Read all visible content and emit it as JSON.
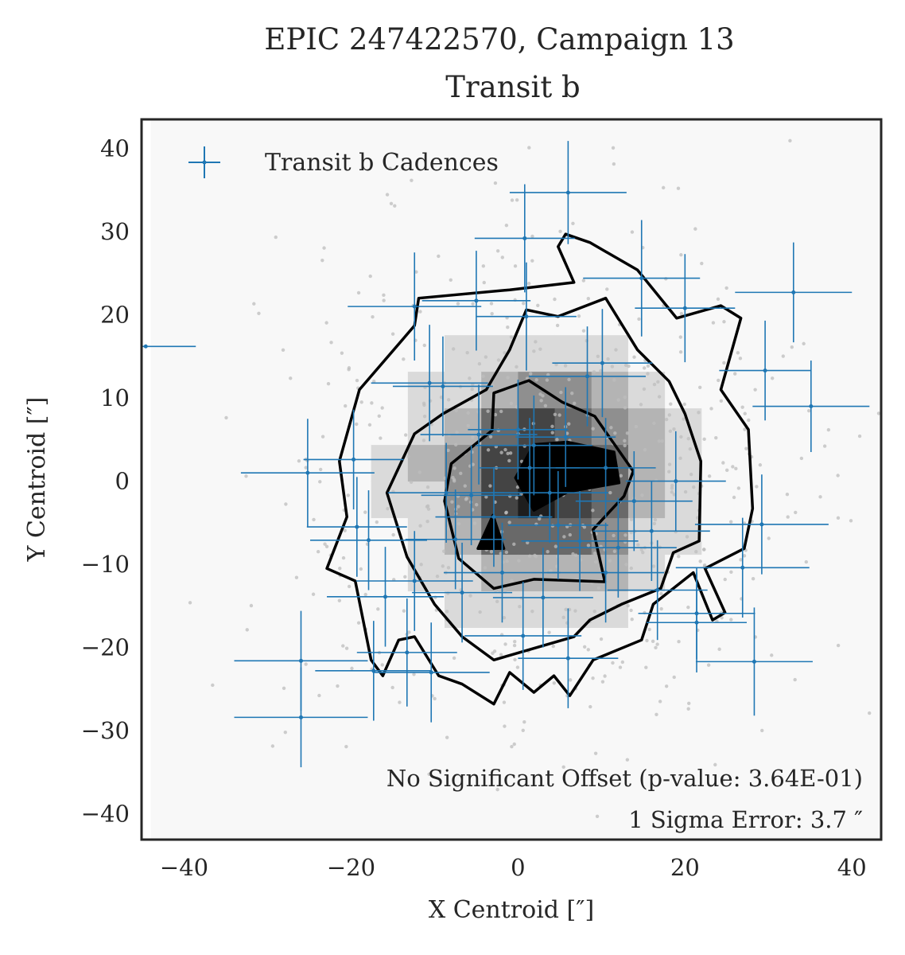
{
  "chart_data": {
    "type": "scatter",
    "title": [
      "EPIC 247422570, Campaign 13",
      "Transit b"
    ],
    "xlabel": "X Centroid [″]",
    "ylabel": "Y Centroid [″]",
    "xlim": [
      -45.1,
      43.5
    ],
    "ylim": [
      -43.1,
      43.5
    ],
    "xticks": [
      -40,
      -20,
      0,
      20,
      40
    ],
    "yticks": [
      -40,
      -30,
      -20,
      -10,
      0,
      10,
      20,
      30,
      40
    ],
    "xtick_labels": [
      "−40",
      "−20",
      "0",
      "20",
      "40"
    ],
    "ytick_labels": [
      "−40",
      "−30",
      "−20",
      "−10",
      "0",
      "10",
      "20",
      "30",
      "40"
    ],
    "grid": false,
    "legend": {
      "placement": "top-left",
      "entries": [
        "Transit b Cadences"
      ]
    },
    "colors": {
      "cadences": "#1f77b4",
      "contour": "#000000",
      "background_points": "#bdbdbd"
    },
    "annotations": [
      "No Significant Offset (p-value: 3.64E-01)",
      "1 Sigma Error: 3.7 ″"
    ],
    "series": [
      {
        "name": "Transit b Cadences",
        "points_x_y_xerr_yerr": [
          [
            6.0,
            34.7,
            7,
            6.2
          ],
          [
            0.8,
            29.2,
            6,
            6.5
          ],
          [
            -5.0,
            21.7,
            6.5,
            6
          ],
          [
            -12.4,
            21.0,
            8,
            6.5
          ],
          [
            1.0,
            19.8,
            6,
            6.5
          ],
          [
            14.8,
            24.4,
            7,
            7
          ],
          [
            20.0,
            20.8,
            6,
            6.5
          ],
          [
            33.0,
            22.7,
            7,
            6
          ],
          [
            29.6,
            13.3,
            5.5,
            6
          ],
          [
            35.1,
            9.0,
            7,
            5.5
          ],
          [
            -25.2,
            1.0,
            8,
            6.5
          ],
          [
            -19.7,
            2.6,
            6,
            6
          ],
          [
            -10.6,
            11.8,
            7,
            7
          ],
          [
            -9.0,
            11.4,
            6,
            6
          ],
          [
            8.3,
            12.6,
            7,
            6
          ],
          [
            10.1,
            14.2,
            6,
            6.5
          ],
          [
            5.7,
            5.3,
            6,
            6
          ],
          [
            18.9,
            0.0,
            6,
            6
          ],
          [
            29.2,
            -5.2,
            8,
            6
          ],
          [
            26.9,
            -10.4,
            8,
            6
          ],
          [
            21.4,
            -15.9,
            7,
            5.5
          ],
          [
            21.4,
            -17.0,
            6,
            6
          ],
          [
            28.3,
            -21.7,
            7,
            6.5
          ],
          [
            -26.0,
            -21.6,
            8,
            6
          ],
          [
            -26.0,
            -28.4,
            8,
            6
          ],
          [
            -17.3,
            -22.8,
            7,
            6
          ],
          [
            -13.3,
            -20.6,
            6,
            6.5
          ],
          [
            -10.4,
            -23.0,
            7,
            6
          ],
          [
            -15.9,
            -13.9,
            7,
            6
          ],
          [
            -17.9,
            -7.1,
            7,
            6
          ],
          [
            -19.3,
            -5.5,
            6,
            6
          ],
          [
            -6.7,
            -13.4,
            6,
            6
          ],
          [
            -1.9,
            -11.0,
            7,
            6
          ],
          [
            6.0,
            -21.3,
            6,
            6
          ],
          [
            0.6,
            -18.6,
            7,
            6.5
          ],
          [
            7.4,
            -7.2,
            7,
            6
          ],
          [
            16.0,
            -6.0,
            7,
            6
          ],
          [
            13.9,
            -2.4,
            7,
            6
          ],
          [
            10.5,
            1.6,
            6,
            6
          ],
          [
            1.9,
            4.3,
            7,
            6
          ],
          [
            -2.9,
            -4.3,
            7,
            6
          ],
          [
            -5.6,
            -1.7,
            6,
            6
          ],
          [
            -8.6,
            -1.4,
            7,
            6
          ],
          [
            0.0,
            6.2,
            6,
            6
          ],
          [
            3.8,
            -1.4,
            7,
            6
          ],
          [
            4.8,
            -5.3,
            6,
            6.5
          ],
          [
            10.5,
            -11.0,
            7,
            6
          ],
          [
            16.7,
            -13.1,
            6,
            6
          ],
          [
            -12.4,
            -12.0,
            7,
            6
          ],
          [
            -44.6,
            16.2,
            6,
            0
          ],
          [
            -4.7,
            5.6,
            7,
            6
          ],
          [
            1.4,
            1.6,
            6,
            6
          ],
          [
            12.0,
            -8.0,
            7,
            6
          ],
          [
            -7.5,
            -7.0,
            6,
            6
          ],
          [
            3.0,
            -14.0,
            6,
            6
          ]
        ]
      }
    ],
    "contours": [
      {
        "level": "outer",
        "path_xy": [
          [
            5.7,
            29.7
          ],
          [
            8.6,
            28.7
          ],
          [
            14.3,
            25.4
          ],
          [
            19.0,
            19.6
          ],
          [
            24.3,
            21.1
          ],
          [
            26.7,
            19.6
          ],
          [
            24.3,
            11.0
          ],
          [
            27.6,
            6.2
          ],
          [
            28.1,
            -3.3
          ],
          [
            27.1,
            -8.1
          ],
          [
            22.4,
            -10.5
          ],
          [
            24.8,
            -15.8
          ],
          [
            23.3,
            -16.7
          ],
          [
            21.0,
            -11.0
          ],
          [
            16.2,
            -14.8
          ],
          [
            14.8,
            -19.1
          ],
          [
            9.0,
            -21.5
          ],
          [
            6.2,
            -25.8
          ],
          [
            4.3,
            -23.4
          ],
          [
            1.9,
            -25.4
          ],
          [
            -1.0,
            -23.0
          ],
          [
            -2.9,
            -26.8
          ],
          [
            -6.7,
            -24.4
          ],
          [
            -9.5,
            -23.4
          ],
          [
            -12.4,
            -18.7
          ],
          [
            -14.3,
            -19.1
          ],
          [
            -16.2,
            -23.4
          ],
          [
            -17.6,
            -21.5
          ],
          [
            -19.5,
            -12.0
          ],
          [
            -22.9,
            -10.5
          ],
          [
            -20.5,
            -4.3
          ],
          [
            -21.4,
            2.4
          ],
          [
            -19.0,
            11.0
          ],
          [
            -12.4,
            18.7
          ],
          [
            -11.9,
            22.0
          ],
          [
            -1.0,
            23.0
          ],
          [
            6.7,
            23.9
          ],
          [
            4.8,
            28.2
          ]
        ]
      },
      {
        "level": "middle",
        "path_xy": [
          [
            1.0,
            20.6
          ],
          [
            4.8,
            19.8
          ],
          [
            10.5,
            22.0
          ],
          [
            14.3,
            15.8
          ],
          [
            18.1,
            12.0
          ],
          [
            20.0,
            8.1
          ],
          [
            21.9,
            2.4
          ],
          [
            21.7,
            -7.2
          ],
          [
            18.6,
            -8.6
          ],
          [
            17.1,
            -12.9
          ],
          [
            12.4,
            -14.8
          ],
          [
            8.6,
            -16.7
          ],
          [
            6.7,
            -18.7
          ],
          [
            -2.9,
            -21.5
          ],
          [
            -6.7,
            -18.7
          ],
          [
            -10.0,
            -14.8
          ],
          [
            -13.3,
            -9.1
          ],
          [
            -15.7,
            -1.4
          ],
          [
            -12.4,
            5.7
          ],
          [
            -9.0,
            8.1
          ],
          [
            -3.8,
            11.0
          ],
          [
            -1.0,
            15.8
          ]
        ]
      },
      {
        "level": "inner",
        "path_xy": [
          [
            -2.9,
            10.6
          ],
          [
            1.3,
            12.1
          ],
          [
            5.3,
            9.5
          ],
          [
            9.2,
            7.8
          ],
          [
            13.8,
            1.2
          ],
          [
            12.7,
            -1.8
          ],
          [
            9.0,
            -5.8
          ],
          [
            10.4,
            -12.1
          ],
          [
            1.9,
            -11.8
          ],
          [
            -2.9,
            -12.9
          ],
          [
            -7.1,
            -9.3
          ],
          [
            -8.8,
            -2.4
          ],
          [
            -8.0,
            2.1
          ],
          [
            -3.1,
            6.1
          ]
        ]
      },
      {
        "level": "core",
        "path_xy": [
          [
            1.9,
            4.4
          ],
          [
            5.9,
            4.7
          ],
          [
            11.5,
            3.5
          ],
          [
            12.1,
            -0.2
          ],
          [
            5.9,
            -1.3
          ],
          [
            1.9,
            -3.5
          ],
          [
            -0.3,
            0.4
          ]
        ]
      },
      {
        "level": "core-2",
        "path_xy": [
          [
            -3.0,
            -4.1
          ],
          [
            -1.7,
            -8.1
          ],
          [
            -4.8,
            -8.1
          ]
        ]
      }
    ]
  }
}
